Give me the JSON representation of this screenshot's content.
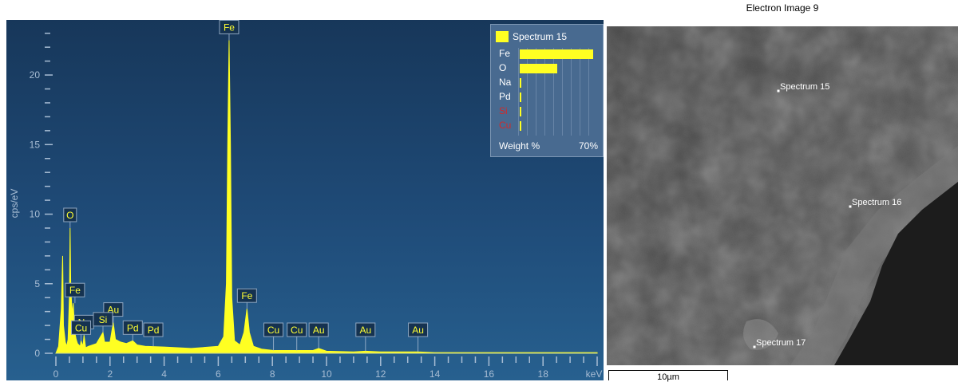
{
  "chart_data": {
    "type": "line",
    "ylabel": "cps/eV",
    "xunit": "keV",
    "xlim": [
      0,
      20
    ],
    "ylim": [
      0,
      23.5
    ],
    "xticks": [
      0,
      2,
      4,
      6,
      8,
      10,
      12,
      14,
      16,
      18
    ],
    "yticks": [
      0,
      5,
      10,
      15,
      20
    ],
    "grid": false,
    "series": [
      {
        "x": [
          0.0,
          0.1,
          0.2,
          0.25,
          0.28,
          0.35,
          0.4,
          0.45,
          0.5,
          0.525,
          0.55,
          0.6,
          0.64,
          0.7,
          0.75,
          0.8,
          0.9,
          0.93,
          1.0,
          1.04,
          1.1,
          1.2,
          1.5,
          1.74,
          1.8,
          2.0,
          2.12,
          2.2,
          2.4,
          2.6,
          2.84,
          3.0,
          3.3,
          4.0,
          5.0,
          6.0,
          6.2,
          6.3,
          6.35,
          6.4,
          6.45,
          6.5,
          6.6,
          6.8,
          6.95,
          7.06,
          7.15,
          7.3,
          7.6,
          8.04,
          8.5,
          8.9,
          9.5,
          9.71,
          10.0,
          11.0,
          11.44,
          12.0,
          13.38,
          14.0,
          16.0,
          18.0,
          20.0
        ],
        "y": [
          0.0,
          0.5,
          3.2,
          7.0,
          2.0,
          0.8,
          0.5,
          1.0,
          4.0,
          9.0,
          4.8,
          2.8,
          3.6,
          1.5,
          1.0,
          0.7,
          0.5,
          0.9,
          0.5,
          1.3,
          0.4,
          0.5,
          0.7,
          1.5,
          0.8,
          0.8,
          2.2,
          1.0,
          0.8,
          0.7,
          0.9,
          0.6,
          0.5,
          0.45,
          0.35,
          0.5,
          1.2,
          5.0,
          15.0,
          22.5,
          15.0,
          4.0,
          0.9,
          0.6,
          1.5,
          3.2,
          1.5,
          0.5,
          0.3,
          0.2,
          0.2,
          0.2,
          0.2,
          0.35,
          0.15,
          0.1,
          0.15,
          0.1,
          0.1,
          0.05,
          0.05,
          0.05,
          0.05
        ]
      }
    ],
    "peak_labels": [
      {
        "label": "Fe",
        "x": 6.4,
        "y": 22.5
      },
      {
        "label": "O",
        "x": 0.525,
        "y": 9.0
      },
      {
        "label": "Fe",
        "x": 0.705,
        "y": 3.6
      },
      {
        "label": "Fe",
        "x": 7.06,
        "y": 3.2
      },
      {
        "label": "Na",
        "x": 1.04,
        "y": 1.3
      },
      {
        "label": "Au",
        "x": 2.12,
        "y": 2.2
      },
      {
        "label": "Cu",
        "x": 0.93,
        "y": 0.9
      },
      {
        "label": "Si",
        "x": 1.74,
        "y": 1.5
      },
      {
        "label": "Pd",
        "x": 2.84,
        "y": 0.9
      },
      {
        "label": "Pd",
        "x": 3.6,
        "y": 0.5
      },
      {
        "label": "Cu",
        "x": 8.04,
        "y": 0.2
      },
      {
        "label": "Cu",
        "x": 8.9,
        "y": 0.2
      },
      {
        "label": "Au",
        "x": 9.71,
        "y": 0.35
      },
      {
        "label": "Au",
        "x": 11.44,
        "y": 0.15
      },
      {
        "label": "Au",
        "x": 13.38,
        "y": 0.1
      }
    ],
    "legend": {
      "title": "Spectrum 15",
      "x_label": "Weight %",
      "x_max_label": "70%",
      "items": [
        {
          "label": "Fe",
          "weight": 65,
          "color": "#ffffff"
        },
        {
          "label": "O",
          "weight": 33,
          "color": "#ffffff"
        },
        {
          "label": "Na",
          "weight": 1.5,
          "color": "#ffffff"
        },
        {
          "label": "Pd",
          "weight": 0.8,
          "color": "#ffffff"
        },
        {
          "label": "Si",
          "weight": 0.4,
          "color": "#d12a2a"
        },
        {
          "label": "Cu",
          "weight": 0.3,
          "color": "#d12a2a"
        }
      ]
    }
  },
  "colors": {
    "spectrum": "#ffff22",
    "tag": "#ffff33",
    "axis": "#a8bdd4"
  },
  "image": {
    "title": "Electron Image 9",
    "scale_label": "10µm",
    "markers": [
      {
        "label": "Spectrum 15"
      },
      {
        "label": "Spectrum 16"
      },
      {
        "label": "Spectrum 17"
      }
    ]
  }
}
